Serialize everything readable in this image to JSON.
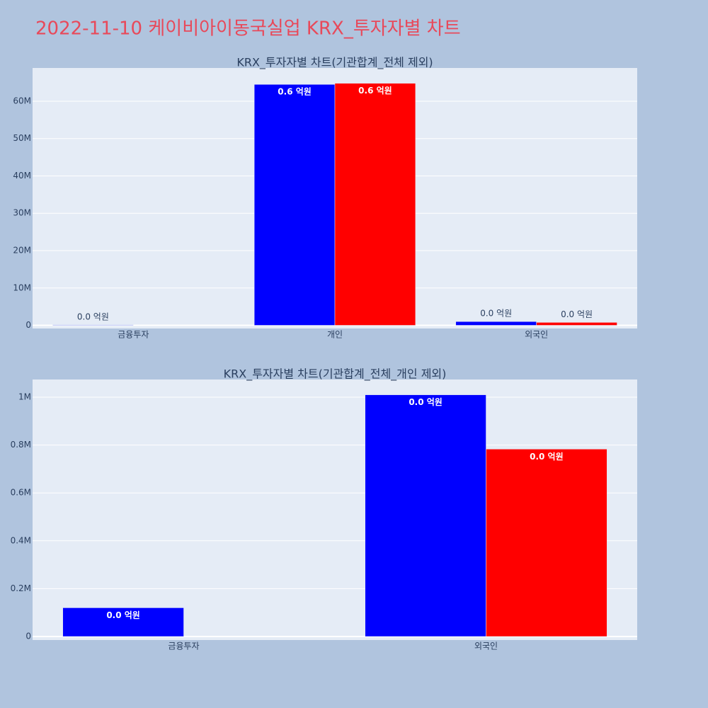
{
  "title": "2022-11-10 케이비아이동국실업 KRX_투자자별 차트",
  "chart_data": [
    {
      "type": "bar",
      "title": "KRX_투자자별 차트(기관합계_전체 제외)",
      "categories": [
        "금융투자",
        "개인",
        "외국인"
      ],
      "series": [
        {
          "color": "#0000ff",
          "values": [
            120000,
            64500000,
            1010000
          ],
          "value_labels": [
            "0.0 억원",
            "0.6 억원",
            "0.0 억원"
          ]
        },
        {
          "color": "#ff0000",
          "values": [
            null,
            64800000,
            783000
          ],
          "value_labels": [
            null,
            "0.6 억원",
            "0.0 억원"
          ]
        }
      ],
      "ylim": [
        -850000,
        68900000
      ],
      "yticks": [
        0,
        {
          "value": 10000000,
          "label": "10M"
        },
        {
          "value": 20000000,
          "label": "20M"
        },
        {
          "value": 30000000,
          "label": "30M"
        },
        {
          "value": 40000000,
          "label": "40M"
        },
        {
          "value": 50000000,
          "label": "50M"
        },
        {
          "value": 60000000,
          "label": "60M"
        }
      ],
      "grid": true
    },
    {
      "type": "bar",
      "title": "KRX_투자자별 차트(기관합계_전체_개인 제외)",
      "categories": [
        "금융투자",
        "외국인"
      ],
      "series": [
        {
          "color": "#0000ff",
          "values": [
            120000,
            1010000
          ],
          "value_labels": [
            "0.0 억원",
            "0.0 억원"
          ]
        },
        {
          "color": "#ff0000",
          "values": [
            null,
            783000
          ],
          "value_labels": [
            null,
            "0.0 억원"
          ]
        }
      ],
      "ylim": [
        -14800,
        1074000
      ],
      "yticks": [
        0,
        {
          "value": 200000,
          "label": "0.2M"
        },
        {
          "value": 400000,
          "label": "0.4M"
        },
        {
          "value": 600000,
          "label": "0.6M"
        },
        {
          "value": 800000,
          "label": "0.8M"
        },
        {
          "value": 1000000,
          "label": "1M"
        }
      ],
      "grid": true
    }
  ]
}
